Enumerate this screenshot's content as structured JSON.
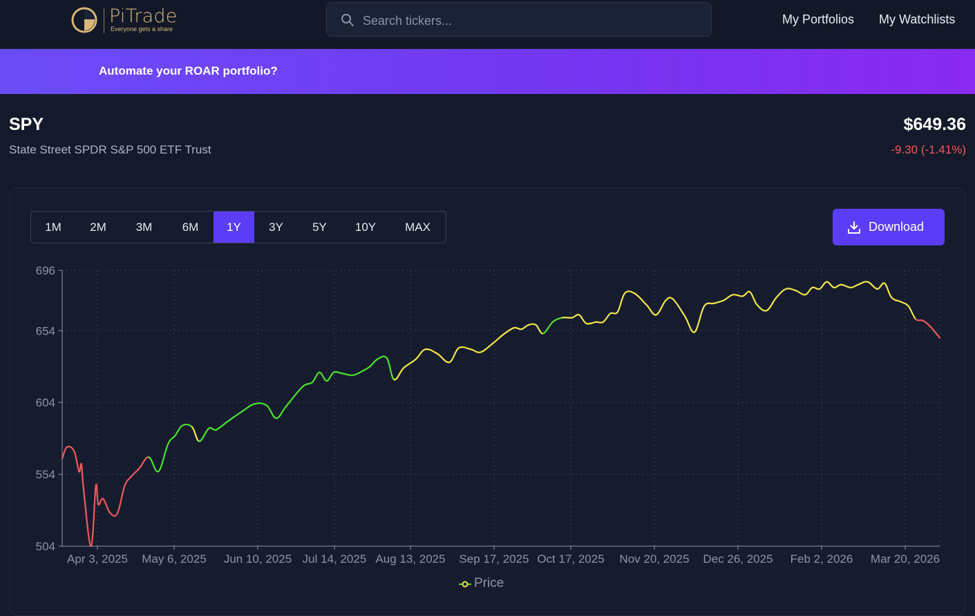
{
  "app": {
    "logo_name": "PiTrade",
    "logo_tagline": "Everyone gets a share",
    "brand_gold": "#d8b77a"
  },
  "header": {
    "search_placeholder": "Search tickers...",
    "nav": [
      "My Portfolios",
      "My Watchlists"
    ]
  },
  "banner": {
    "text": "Automate your ROAR portfolio?"
  },
  "quote": {
    "symbol": "SPY",
    "name": "State Street SPDR S&P 500 ETF Trust",
    "price": "$649.36",
    "change": "-9.30 (-1.41%)",
    "change_color": "#ef5a5a"
  },
  "controls": {
    "ranges": [
      "1M",
      "2M",
      "3M",
      "6M",
      "1Y",
      "3Y",
      "5Y",
      "10Y",
      "MAX"
    ],
    "active_range": "1Y",
    "download_label": "Download",
    "accent": "#5b3df5"
  },
  "chart_data": {
    "type": "line",
    "title": "",
    "xlabel": "",
    "ylabel": "",
    "ylim": [
      504,
      696
    ],
    "yticks": [
      504,
      554,
      604,
      654,
      696
    ],
    "xtick_labels": [
      "Apr 3, 2025",
      "May 6, 2025",
      "Jun 10, 2025",
      "Jul 14, 2025",
      "Aug 13, 2025",
      "Sep 17, 2025",
      "Oct 17, 2025",
      "Nov 20, 2025",
      "Dec 26, 2025",
      "Feb 2, 2026",
      "Mar 20, 2026"
    ],
    "grid": true,
    "legend": "bottom-center",
    "series": [
      {
        "name": "Price",
        "segment_colors": {
          "red": "#ef5a5a",
          "green": "#4be12e",
          "yellow": "#f2e64a"
        },
        "points": [
          [
            "2025-03-26",
            565,
            "red"
          ],
          [
            "2025-03-28",
            573,
            "red"
          ],
          [
            "2025-03-31",
            570,
            "red"
          ],
          [
            "2025-04-02",
            556,
            "red"
          ],
          [
            "2025-04-03",
            561,
            "red"
          ],
          [
            "2025-04-04",
            542,
            "red"
          ],
          [
            "2025-04-07",
            504,
            "red"
          ],
          [
            "2025-04-09",
            546,
            "red"
          ],
          [
            "2025-04-10",
            533,
            "red"
          ],
          [
            "2025-04-12",
            537,
            "red"
          ],
          [
            "2025-04-15",
            527,
            "red"
          ],
          [
            "2025-04-18",
            527,
            "red"
          ],
          [
            "2025-04-21",
            546,
            "red"
          ],
          [
            "2025-04-24",
            553,
            "red"
          ],
          [
            "2025-04-27",
            558,
            "red"
          ],
          [
            "2025-05-01",
            566,
            "red"
          ],
          [
            "2025-05-05",
            556,
            "green"
          ],
          [
            "2025-05-09",
            575,
            "green"
          ],
          [
            "2025-05-12",
            581,
            "green"
          ],
          [
            "2025-05-15",
            588,
            "green"
          ],
          [
            "2025-05-19",
            587,
            "green"
          ],
          [
            "2025-05-22",
            577,
            "yellow"
          ],
          [
            "2025-05-26",
            586,
            "green"
          ],
          [
            "2025-05-29",
            585,
            "green"
          ],
          [
            "2025-06-03",
            591,
            "green"
          ],
          [
            "2025-06-09",
            598,
            "green"
          ],
          [
            "2025-06-14",
            603,
            "green"
          ],
          [
            "2025-06-19",
            602,
            "green"
          ],
          [
            "2025-06-23",
            593,
            "green"
          ],
          [
            "2025-06-27",
            601,
            "green"
          ],
          [
            "2025-07-04",
            615,
            "green"
          ],
          [
            "2025-07-08",
            618,
            "green"
          ],
          [
            "2025-07-11",
            625,
            "green"
          ],
          [
            "2025-07-14",
            619,
            "green"
          ],
          [
            "2025-07-17",
            625,
            "green"
          ],
          [
            "2025-07-21",
            624,
            "green"
          ],
          [
            "2025-07-25",
            623,
            "green"
          ],
          [
            "2025-07-29",
            626,
            "green"
          ],
          [
            "2025-08-01",
            629,
            "green"
          ],
          [
            "2025-08-04",
            634,
            "green"
          ],
          [
            "2025-08-08",
            635,
            "green"
          ],
          [
            "2025-08-11",
            620,
            "green"
          ],
          [
            "2025-08-15",
            628,
            "yellow"
          ],
          [
            "2025-08-20",
            634,
            "yellow"
          ],
          [
            "2025-08-24",
            641,
            "yellow"
          ],
          [
            "2025-08-29",
            638,
            "yellow"
          ],
          [
            "2025-09-03",
            632,
            "yellow"
          ],
          [
            "2025-09-07",
            642,
            "yellow"
          ],
          [
            "2025-09-12",
            641,
            "yellow"
          ],
          [
            "2025-09-16",
            639,
            "yellow"
          ],
          [
            "2025-09-21",
            645,
            "yellow"
          ],
          [
            "2025-09-26",
            652,
            "yellow"
          ],
          [
            "2025-09-30",
            656,
            "yellow"
          ],
          [
            "2025-10-03",
            655,
            "yellow"
          ],
          [
            "2025-10-06",
            658,
            "yellow"
          ],
          [
            "2025-10-09",
            658,
            "yellow"
          ],
          [
            "2025-10-12",
            652,
            "yellow"
          ],
          [
            "2025-10-16",
            660,
            "green"
          ],
          [
            "2025-10-20",
            663,
            "green"
          ],
          [
            "2025-10-24",
            663,
            "yellow"
          ],
          [
            "2025-10-27",
            665,
            "yellow"
          ],
          [
            "2025-10-30",
            659,
            "yellow"
          ],
          [
            "2025-11-03",
            660,
            "yellow"
          ],
          [
            "2025-11-06",
            660,
            "yellow"
          ],
          [
            "2025-11-09",
            666,
            "yellow"
          ],
          [
            "2025-11-12",
            667,
            "yellow"
          ],
          [
            "2025-11-15",
            680,
            "yellow"
          ],
          [
            "2025-11-19",
            680,
            "yellow"
          ],
          [
            "2025-11-24",
            672,
            "yellow"
          ],
          [
            "2025-11-28",
            665,
            "yellow"
          ],
          [
            "2025-12-02",
            675,
            "yellow"
          ],
          [
            "2025-12-05",
            676,
            "yellow"
          ],
          [
            "2025-12-10",
            664,
            "yellow"
          ],
          [
            "2025-12-14",
            653,
            "yellow"
          ],
          [
            "2025-12-18",
            671,
            "yellow"
          ],
          [
            "2025-12-22",
            673,
            "yellow"
          ],
          [
            "2025-12-26",
            675,
            "yellow"
          ],
          [
            "2025-12-30",
            679,
            "yellow"
          ],
          [
            "2026-01-03",
            678,
            "yellow"
          ],
          [
            "2026-01-06",
            681,
            "yellow"
          ],
          [
            "2026-01-09",
            672,
            "yellow"
          ],
          [
            "2026-01-13",
            668,
            "yellow"
          ],
          [
            "2026-01-17",
            677,
            "yellow"
          ],
          [
            "2026-01-21",
            683,
            "yellow"
          ],
          [
            "2026-01-25",
            682,
            "yellow"
          ],
          [
            "2026-01-29",
            679,
            "yellow"
          ],
          [
            "2026-02-01",
            684,
            "yellow"
          ],
          [
            "2026-02-04",
            683,
            "yellow"
          ],
          [
            "2026-02-07",
            688,
            "yellow"
          ],
          [
            "2026-02-10",
            684,
            "yellow"
          ],
          [
            "2026-02-13",
            686,
            "yellow"
          ],
          [
            "2026-02-17",
            684,
            "yellow"
          ],
          [
            "2026-02-20",
            686,
            "yellow"
          ],
          [
            "2026-02-24",
            688,
            "yellow"
          ],
          [
            "2026-02-28",
            683,
            "yellow"
          ],
          [
            "2026-03-03",
            687,
            "yellow"
          ],
          [
            "2026-03-06",
            677,
            "yellow"
          ],
          [
            "2026-03-10",
            674,
            "yellow"
          ],
          [
            "2026-03-13",
            671,
            "yellow"
          ],
          [
            "2026-03-16",
            662,
            "yellow"
          ],
          [
            "2026-03-19",
            661,
            "red"
          ],
          [
            "2026-03-22",
            657,
            "red"
          ],
          [
            "2026-03-26",
            649,
            "red"
          ]
        ]
      }
    ]
  }
}
